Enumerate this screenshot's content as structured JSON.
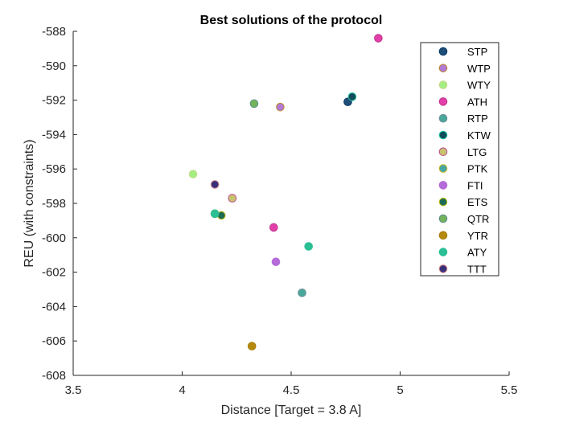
{
  "chart_data": {
    "type": "scatter",
    "title": "Best solutions of the protocol",
    "xlabel": "Distance [Target = 3.8 A]",
    "ylabel": "REU (with constraints)",
    "xlim": [
      3.5,
      5.5
    ],
    "ylim": [
      -608,
      -588
    ],
    "xticks": [
      "3.5",
      "4",
      "4.5",
      "5",
      "5.5"
    ],
    "yticks": [
      "-588",
      "-590",
      "-592",
      "-594",
      "-596",
      "-598",
      "-600",
      "-602",
      "-604",
      "-606",
      "-608"
    ],
    "grid": false,
    "legend_position": "top-right",
    "series": [
      {
        "name": "STP",
        "fill": "#1f4e79",
        "edge": "#0b3a63",
        "points": [
          [
            4.76,
            -592.1
          ]
        ]
      },
      {
        "name": "WTP",
        "fill": "#b07ad6",
        "edge": "#c18a2e",
        "points": [
          [
            4.45,
            -592.4
          ]
        ]
      },
      {
        "name": "WTY",
        "fill": "#a3ee82",
        "edge": "#c9d98a",
        "points": [
          [
            4.05,
            -596.3
          ]
        ]
      },
      {
        "name": "ATH",
        "fill": "#e23fa8",
        "edge": "#c0398f",
        "points": [
          [
            4.9,
            -588.4
          ],
          [
            4.42,
            -599.4
          ]
        ]
      },
      {
        "name": "RTP",
        "fill": "#4aa89a",
        "edge": "#6c8f9a",
        "points": [
          [
            4.55,
            -603.2
          ]
        ]
      },
      {
        "name": "KTW",
        "fill": "#0f4d5a",
        "edge": "#22c3a0",
        "points": [
          [
            4.78,
            -591.8
          ]
        ]
      },
      {
        "name": "LTG",
        "fill": "#c6c46e",
        "edge": "#c04a8c",
        "points": [
          [
            4.23,
            -597.7
          ]
        ]
      },
      {
        "name": "PTK",
        "fill": "#48a8a4",
        "edge": "#c6b820",
        "points": [
          [
            4.15,
            -598.6
          ]
        ]
      },
      {
        "name": "FTI",
        "fill": "#b46ad8",
        "edge": "#b46ad8",
        "points": [
          [
            4.43,
            -601.4
          ]
        ]
      },
      {
        "name": "ETS",
        "fill": "#1e6b54",
        "edge": "#c2c21e",
        "points": [
          [
            4.18,
            -598.7
          ]
        ]
      },
      {
        "name": "QTR",
        "fill": "#73b35a",
        "edge": "#5d8f8a",
        "points": [
          [
            4.33,
            -592.2
          ]
        ]
      },
      {
        "name": "YTR",
        "fill": "#b58a0f",
        "edge": "#a87a0a",
        "points": [
          [
            4.32,
            -606.3
          ]
        ]
      },
      {
        "name": "ATY",
        "fill": "#2bbf95",
        "edge": "#2bbf95",
        "points": [
          [
            4.58,
            -600.5
          ],
          [
            4.15,
            -598.6
          ]
        ]
      },
      {
        "name": "TTT",
        "fill": "#3a2f7a",
        "edge": "#d08a8a",
        "points": [
          [
            4.15,
            -596.9
          ]
        ]
      }
    ]
  }
}
